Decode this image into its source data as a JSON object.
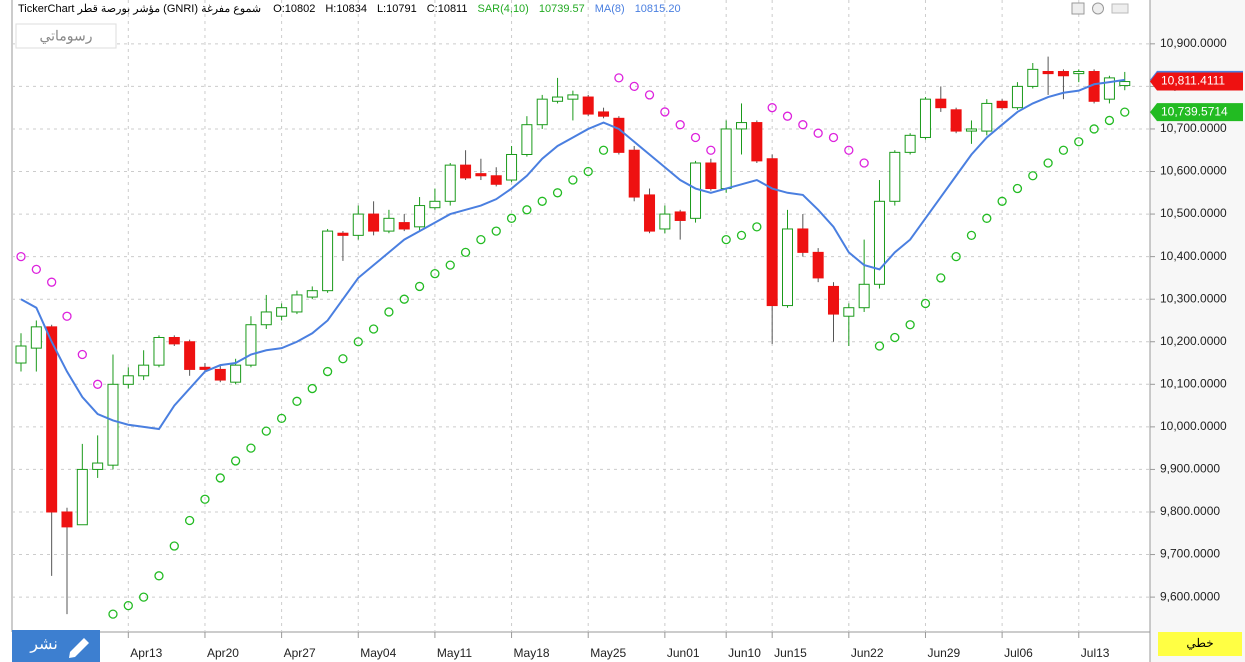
{
  "header": {
    "title": "TickerChart مؤشر بورصة قطر (GNRI) شموع مفرغة",
    "fields": [
      "O:10802",
      "H:10834",
      "L:10791",
      "C:10811"
    ],
    "sar_value": "10739.57",
    "ma_value": "10815.20"
  },
  "ui": {
    "drawings": "رسوماتي",
    "publish": "نشر",
    "chart_kind": "خطي"
  },
  "chart_data": {
    "type": "candlestick",
    "categories": [
      null,
      null,
      null,
      null,
      null,
      null,
      null,
      "Apr13",
      null,
      null,
      null,
      null,
      "Apr20",
      null,
      null,
      null,
      null,
      "Apr27",
      null,
      null,
      null,
      null,
      "May04",
      null,
      null,
      null,
      null,
      "May11",
      null,
      null,
      null,
      null,
      "May18",
      null,
      null,
      null,
      null,
      "May25",
      null,
      null,
      null,
      null,
      "Jun01",
      null,
      null,
      null,
      "Jun10",
      null,
      null,
      "Jun15",
      null,
      null,
      null,
      null,
      "Jun22",
      null,
      null,
      null,
      null,
      "Jun29",
      null,
      null,
      null,
      null,
      "Jul06",
      null,
      null,
      null,
      null,
      "Jul13",
      null,
      null,
      null
    ],
    "open": [
      10150,
      10185,
      10235,
      9800,
      9770,
      9900,
      9910,
      10100,
      10120,
      10145,
      10210,
      10200,
      10140,
      10135,
      10105,
      10145,
      10240,
      10260,
      10270,
      10305,
      10320,
      10455,
      10450,
      10500,
      10460,
      10480,
      10470,
      10515,
      10530,
      10615,
      10595,
      10590,
      10580,
      10640,
      10710,
      10765,
      10770,
      10775,
      10740,
      10725,
      10650,
      10545,
      10465,
      10505,
      10490,
      10620,
      10560,
      10700,
      10715,
      10630,
      10285,
      10465,
      10410,
      10330,
      10260,
      10280,
      10335,
      10530,
      10645,
      10680,
      10770,
      10745,
      10695,
      10695,
      10765,
      10750,
      10800,
      10835,
      10835,
      10830,
      10835,
      10770,
      10802
    ],
    "high": [
      10220,
      10250,
      10240,
      9810,
      9960,
      9980,
      10170,
      10140,
      10180,
      10215,
      10215,
      10205,
      10150,
      10145,
      10160,
      10260,
      10310,
      10290,
      10320,
      10330,
      10465,
      10460,
      10520,
      10530,
      10510,
      10500,
      10540,
      10560,
      10620,
      10650,
      10630,
      10610,
      10660,
      10730,
      10780,
      10820,
      10790,
      10780,
      10750,
      10730,
      10660,
      10560,
      10520,
      10510,
      10625,
      10630,
      10720,
      10760,
      10720,
      10640,
      10510,
      10500,
      10420,
      10340,
      10290,
      10440,
      10580,
      10650,
      10690,
      10775,
      10800,
      10750,
      10720,
      10770,
      10770,
      10810,
      10855,
      10870,
      10840,
      10840,
      10840,
      10825,
      10834
    ],
    "low": [
      10130,
      10130,
      9650,
      9560,
      9770,
      9880,
      9900,
      10090,
      10110,
      10140,
      10190,
      10120,
      10130,
      10105,
      10100,
      10140,
      10230,
      10250,
      10265,
      10300,
      10315,
      10390,
      10440,
      10450,
      10455,
      10460,
      10460,
      10510,
      10520,
      10580,
      10580,
      10565,
      10575,
      10635,
      10700,
      10760,
      10720,
      10730,
      10725,
      10640,
      10530,
      10455,
      10455,
      10440,
      10480,
      10555,
      10550,
      10640,
      10620,
      10195,
      10280,
      10400,
      10340,
      10200,
      10190,
      10270,
      10325,
      10520,
      10640,
      10675,
      10740,
      10690,
      10665,
      10685,
      10745,
      10745,
      10795,
      10780,
      10770,
      10810,
      10760,
      10760,
      10791
    ],
    "close": [
      10190,
      10235,
      9800,
      9765,
      9900,
      9915,
      10100,
      10120,
      10145,
      10210,
      10195,
      10135,
      10135,
      10110,
      10145,
      10240,
      10270,
      10280,
      10310,
      10320,
      10460,
      10450,
      10500,
      10460,
      10490,
      10465,
      10520,
      10530,
      10615,
      10585,
      10590,
      10570,
      10640,
      10710,
      10770,
      10775,
      10780,
      10735,
      10730,
      10645,
      10540,
      10460,
      10500,
      10485,
      10620,
      10560,
      10700,
      10715,
      10625,
      10285,
      10465,
      10410,
      10350,
      10265,
      10280,
      10335,
      10530,
      10645,
      10685,
      10770,
      10750,
      10695,
      10700,
      10760,
      10750,
      10800,
      10840,
      10830,
      10825,
      10835,
      10765,
      10820,
      10811.4111
    ],
    "close_label": "10,811.4111",
    "up_color": "#1a9a1a",
    "down_color": "#ee1111",
    "series": [
      {
        "name": "SAR(4,10)",
        "colors": {
          "above": "#dd22dd",
          "below": "#22bb22"
        },
        "value_label": "10,739.5714",
        "values": [
          10400,
          10370,
          10340,
          10260,
          10170,
          10100,
          9560,
          9580,
          9600,
          9650,
          9720,
          9780,
          9830,
          9880,
          9920,
          9950,
          9990,
          10020,
          10060,
          10090,
          10130,
          10160,
          10200,
          10230,
          10270,
          10300,
          10330,
          10360,
          10380,
          10410,
          10440,
          10460,
          10490,
          10510,
          10530,
          10550,
          10580,
          10600,
          10650,
          10820,
          10800,
          10780,
          10740,
          10710,
          10680,
          10650,
          10440,
          10450,
          10470,
          10750,
          10730,
          10710,
          10690,
          10680,
          10650,
          10620,
          10190,
          10210,
          10240,
          10290,
          10350,
          10400,
          10450,
          10490,
          10530,
          10560,
          10590,
          10620,
          10650,
          10670,
          10700,
          10720,
          10739.5714
        ]
      },
      {
        "name": "MA(8)",
        "color": "#4a7fe0",
        "value_label": "10,815.2025",
        "values": [
          10300,
          10280,
          10200,
          10130,
          10070,
          10030,
          10015,
          10005,
          10000,
          9995,
          10050,
          10090,
          10130,
          10145,
          10150,
          10170,
          10180,
          10185,
          10200,
          10220,
          10250,
          10300,
          10350,
          10380,
          10410,
          10440,
          10460,
          10480,
          10500,
          10510,
          10520,
          10535,
          10560,
          10590,
          10630,
          10660,
          10680,
          10700,
          10715,
          10700,
          10670,
          10640,
          10610,
          10580,
          10560,
          10550,
          10560,
          10570,
          10580,
          10560,
          10550,
          10545,
          10510,
          10470,
          10410,
          10380,
          10370,
          10410,
          10440,
          10490,
          10540,
          10590,
          10640,
          10680,
          10710,
          10740,
          10760,
          10775,
          10785,
          10790,
          10805,
          10810,
          10815.2025
        ]
      }
    ],
    "ylim": [
      9518,
      11003
    ],
    "yticks": [
      {
        "value": 9600,
        "label": "9,600.0000"
      },
      {
        "value": 9700,
        "label": "9,700.0000"
      },
      {
        "value": 9800,
        "label": "9,800.0000"
      },
      {
        "value": 9900,
        "label": "9,900.0000"
      },
      {
        "value": 10000,
        "label": "10,000.0000"
      },
      {
        "value": 10100,
        "label": "10,100.0000"
      },
      {
        "value": 10200,
        "label": "10,200.0000"
      },
      {
        "value": 10300,
        "label": "10,300.0000"
      },
      {
        "value": 10400,
        "label": "10,400.0000"
      },
      {
        "value": 10500,
        "label": "10,500.0000"
      },
      {
        "value": 10600,
        "label": "10,600.0000"
      },
      {
        "value": 10700,
        "label": "10,700.0000"
      },
      {
        "value": 10800,
        "label": "10,800.0000"
      },
      {
        "value": 10900,
        "label": "10,900.0000"
      }
    ],
    "grid": true
  }
}
